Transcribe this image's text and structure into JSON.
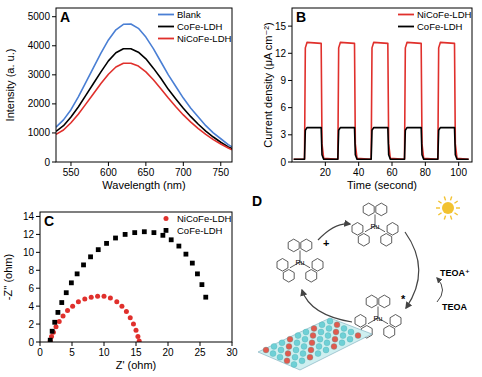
{
  "chart_data": [
    {
      "type": "line",
      "panel": "A",
      "x_label": "Wavelength (nm)",
      "y_label": "Intensity (a. u.)",
      "x": [
        530,
        540,
        550,
        560,
        570,
        580,
        590,
        600,
        610,
        620,
        630,
        640,
        650,
        660,
        670,
        680,
        690,
        700,
        710,
        720,
        730,
        740,
        750,
        760,
        765
      ],
      "xlim": [
        530,
        765
      ],
      "xticks": [
        550,
        600,
        650,
        700,
        750
      ],
      "ylim": [
        0,
        5300
      ],
      "yticks": [
        0,
        1000,
        2000,
        3000,
        4000,
        5000
      ],
      "legend": "upper right",
      "series": [
        {
          "name": "Blank",
          "color": "#4a7fd4",
          "values": [
            1200,
            1450,
            1800,
            2250,
            2750,
            3250,
            3750,
            4200,
            4550,
            4740,
            4750,
            4600,
            4300,
            3900,
            3450,
            3000,
            2600,
            2200,
            1850,
            1550,
            1250,
            1000,
            800,
            600,
            520
          ]
        },
        {
          "name": "CoFe-LDH",
          "color": "#000000",
          "values": [
            1050,
            1250,
            1550,
            1900,
            2300,
            2700,
            3100,
            3480,
            3760,
            3900,
            3900,
            3780,
            3550,
            3230,
            2880,
            2500,
            2170,
            1850,
            1560,
            1300,
            1060,
            860,
            680,
            520,
            460
          ]
        },
        {
          "name": "NiCoFe-LDH",
          "color": "#e0302c",
          "values": [
            950,
            1100,
            1350,
            1650,
            2000,
            2350,
            2700,
            3020,
            3270,
            3400,
            3400,
            3300,
            3100,
            2830,
            2520,
            2200,
            1900,
            1620,
            1370,
            1150,
            950,
            770,
            620,
            480,
            420
          ]
        }
      ]
    },
    {
      "type": "line",
      "panel": "B",
      "x_label": "Time (second)",
      "y_label": "Current density (μA cm⁻²)",
      "x": [
        1,
        7.5,
        8,
        9,
        17.5,
        18,
        19,
        27.5,
        28,
        29,
        37.5,
        38,
        39,
        47.5,
        48,
        49,
        57.5,
        58,
        59,
        67.5,
        68,
        69,
        77.5,
        78,
        79,
        87.5,
        88,
        89,
        97.5,
        98,
        99,
        106
      ],
      "xlim": [
        0,
        108
      ],
      "xticks": [
        20,
        40,
        60,
        80,
        100
      ],
      "ylim": [
        0,
        17
      ],
      "yticks": [
        0,
        3,
        6,
        9,
        12,
        15
      ],
      "legend": "upper right",
      "series": [
        {
          "name": "NiCoFe-LDH",
          "color": "#e0302c",
          "values": [
            0.3,
            0.3,
            12.6,
            13.2,
            13.1,
            2.0,
            0.4,
            0.3,
            12.6,
            13.2,
            13.1,
            2.0,
            0.4,
            0.3,
            12.6,
            13.2,
            13.1,
            2.0,
            0.4,
            0.3,
            12.6,
            13.2,
            13.1,
            2.0,
            0.4,
            0.3,
            12.6,
            13.2,
            13.1,
            2.0,
            0.4,
            0.3
          ]
        },
        {
          "name": "CoFe-LDH",
          "color": "#000000",
          "values": [
            0.3,
            0.3,
            3.5,
            3.8,
            3.8,
            0.8,
            0.3,
            0.3,
            3.5,
            3.8,
            3.8,
            0.8,
            0.3,
            0.3,
            3.5,
            3.8,
            3.8,
            0.8,
            0.3,
            0.3,
            3.5,
            3.8,
            3.8,
            0.8,
            0.3,
            0.3,
            3.5,
            3.8,
            3.8,
            0.8,
            0.3,
            0.3
          ]
        }
      ]
    },
    {
      "type": "scatter",
      "panel": "C",
      "x_label": "Z' (ohm)",
      "y_label": "-Z'' (ohm)",
      "xlim": [
        0,
        30
      ],
      "xticks": [
        0,
        5,
        10,
        15,
        20,
        25,
        30
      ],
      "ylim": [
        0,
        14.5
      ],
      "yticks": [
        0,
        2,
        4,
        6,
        8,
        10,
        12,
        14
      ],
      "legend": "upper right",
      "series": [
        {
          "name": "NiCoFe-LDH",
          "color": "#e0302c",
          "marker": "circle",
          "x": [
            1.6,
            1.8,
            2.1,
            2.5,
            3.0,
            3.6,
            4.3,
            5.1,
            6.0,
            7.0,
            8.0,
            9.0,
            10.0,
            11.0,
            12.0,
            12.8,
            13.5,
            14.1,
            14.6,
            15.0,
            15.3,
            15.5
          ],
          "values": [
            0.1,
            0.6,
            1.1,
            1.7,
            2.3,
            2.9,
            3.5,
            4.0,
            4.5,
            4.8,
            5.0,
            5.1,
            5.1,
            4.9,
            4.5,
            4.0,
            3.4,
            2.7,
            2.0,
            1.3,
            0.6,
            0.1
          ]
        },
        {
          "name": "CoFe-LDH",
          "color": "#000000",
          "marker": "square",
          "x": [
            1.6,
            1.9,
            2.3,
            2.8,
            3.4,
            4.1,
            4.9,
            5.8,
            6.8,
            7.9,
            9.1,
            10.4,
            11.8,
            13.3,
            14.8,
            16.3,
            17.8,
            19.2,
            20.5,
            21.7,
            22.8,
            23.8,
            24.6,
            25.3,
            25.9
          ],
          "values": [
            0.2,
            1.2,
            2.2,
            3.3,
            4.4,
            5.5,
            6.6,
            7.6,
            8.6,
            9.5,
            10.3,
            11.0,
            11.6,
            12.0,
            12.2,
            12.3,
            12.2,
            11.9,
            11.4,
            10.7,
            9.8,
            8.8,
            7.6,
            6.4,
            5.0
          ]
        }
      ]
    }
  ],
  "diagram": {
    "panel": "D",
    "metal": "Ru",
    "oxidized_mark": "+",
    "excited_mark": "*",
    "donor": "TEOA",
    "donor_oxidized": "TEOA⁺"
  }
}
